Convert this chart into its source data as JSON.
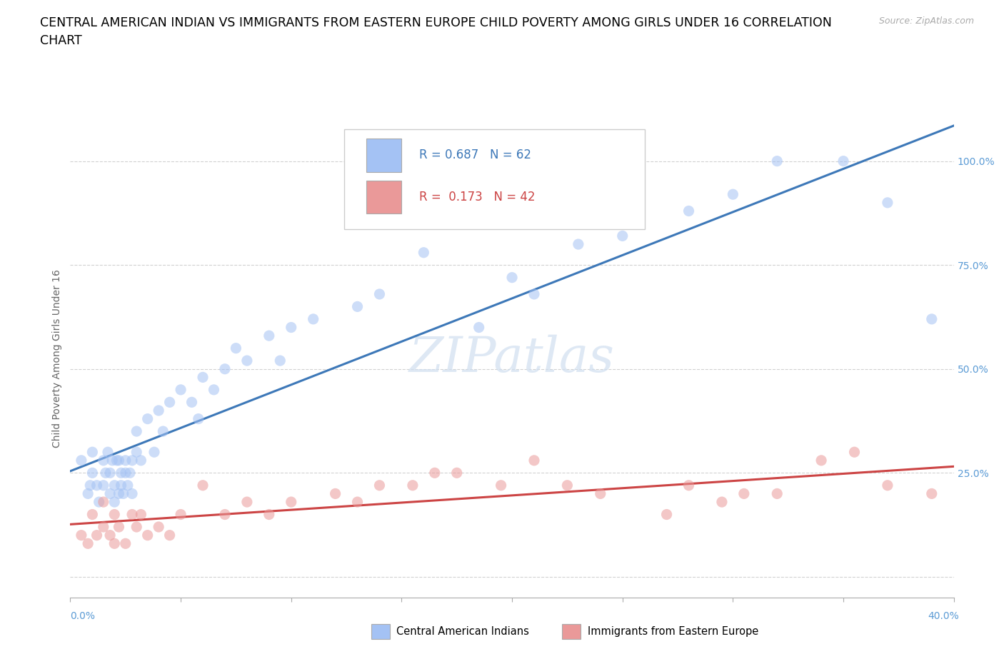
{
  "title_line1": "CENTRAL AMERICAN INDIAN VS IMMIGRANTS FROM EASTERN EUROPE CHILD POVERTY AMONG GIRLS UNDER 16 CORRELATION",
  "title_line2": "CHART",
  "source": "Source: ZipAtlas.com",
  "ylabel": "Child Poverty Among Girls Under 16",
  "xlim": [
    0.0,
    0.4
  ],
  "ylim": [
    -0.05,
    1.1
  ],
  "R_blue": 0.687,
  "N_blue": 62,
  "R_pink": 0.173,
  "N_pink": 42,
  "blue_color": "#a4c2f4",
  "pink_color": "#ea9999",
  "blue_line_color": "#3d78b8",
  "pink_line_color": "#cc4444",
  "legend_label_blue": "Central American Indians",
  "legend_label_pink": "Immigrants from Eastern Europe",
  "watermark": "ZIPatlas",
  "blue_scatter_x": [
    0.005,
    0.008,
    0.009,
    0.01,
    0.01,
    0.012,
    0.013,
    0.015,
    0.015,
    0.016,
    0.017,
    0.018,
    0.018,
    0.019,
    0.02,
    0.02,
    0.021,
    0.022,
    0.022,
    0.023,
    0.023,
    0.024,
    0.025,
    0.025,
    0.026,
    0.027,
    0.028,
    0.028,
    0.03,
    0.03,
    0.032,
    0.035,
    0.038,
    0.04,
    0.042,
    0.045,
    0.05,
    0.055,
    0.058,
    0.06,
    0.065,
    0.07,
    0.075,
    0.08,
    0.09,
    0.095,
    0.1,
    0.11,
    0.13,
    0.14,
    0.16,
    0.185,
    0.2,
    0.21,
    0.23,
    0.25,
    0.28,
    0.3,
    0.32,
    0.35,
    0.37,
    0.39
  ],
  "blue_scatter_y": [
    0.28,
    0.2,
    0.22,
    0.3,
    0.25,
    0.22,
    0.18,
    0.28,
    0.22,
    0.25,
    0.3,
    0.2,
    0.25,
    0.28,
    0.18,
    0.22,
    0.28,
    0.2,
    0.28,
    0.22,
    0.25,
    0.2,
    0.25,
    0.28,
    0.22,
    0.25,
    0.2,
    0.28,
    0.3,
    0.35,
    0.28,
    0.38,
    0.3,
    0.4,
    0.35,
    0.42,
    0.45,
    0.42,
    0.38,
    0.48,
    0.45,
    0.5,
    0.55,
    0.52,
    0.58,
    0.52,
    0.6,
    0.62,
    0.65,
    0.68,
    0.78,
    0.6,
    0.72,
    0.68,
    0.8,
    0.82,
    0.88,
    0.92,
    1.0,
    1.0,
    0.9,
    0.62
  ],
  "pink_scatter_x": [
    0.005,
    0.008,
    0.01,
    0.012,
    0.015,
    0.015,
    0.018,
    0.02,
    0.02,
    0.022,
    0.025,
    0.028,
    0.03,
    0.032,
    0.035,
    0.04,
    0.045,
    0.05,
    0.06,
    0.07,
    0.08,
    0.09,
    0.1,
    0.12,
    0.13,
    0.14,
    0.155,
    0.165,
    0.175,
    0.195,
    0.21,
    0.225,
    0.24,
    0.27,
    0.28,
    0.295,
    0.305,
    0.32,
    0.34,
    0.355,
    0.37,
    0.39
  ],
  "pink_scatter_y": [
    0.1,
    0.08,
    0.15,
    0.1,
    0.12,
    0.18,
    0.1,
    0.08,
    0.15,
    0.12,
    0.08,
    0.15,
    0.12,
    0.15,
    0.1,
    0.12,
    0.1,
    0.15,
    0.22,
    0.15,
    0.18,
    0.15,
    0.18,
    0.2,
    0.18,
    0.22,
    0.22,
    0.25,
    0.25,
    0.22,
    0.28,
    0.22,
    0.2,
    0.15,
    0.22,
    0.18,
    0.2,
    0.2,
    0.28,
    0.3,
    0.22,
    0.2
  ],
  "grid_color": "#cccccc",
  "background_color": "#ffffff",
  "title_fontsize": 12.5,
  "axis_label_fontsize": 10,
  "tick_fontsize": 10,
  "scatter_size": 120,
  "scatter_alpha": 0.55,
  "line_width": 2.2
}
